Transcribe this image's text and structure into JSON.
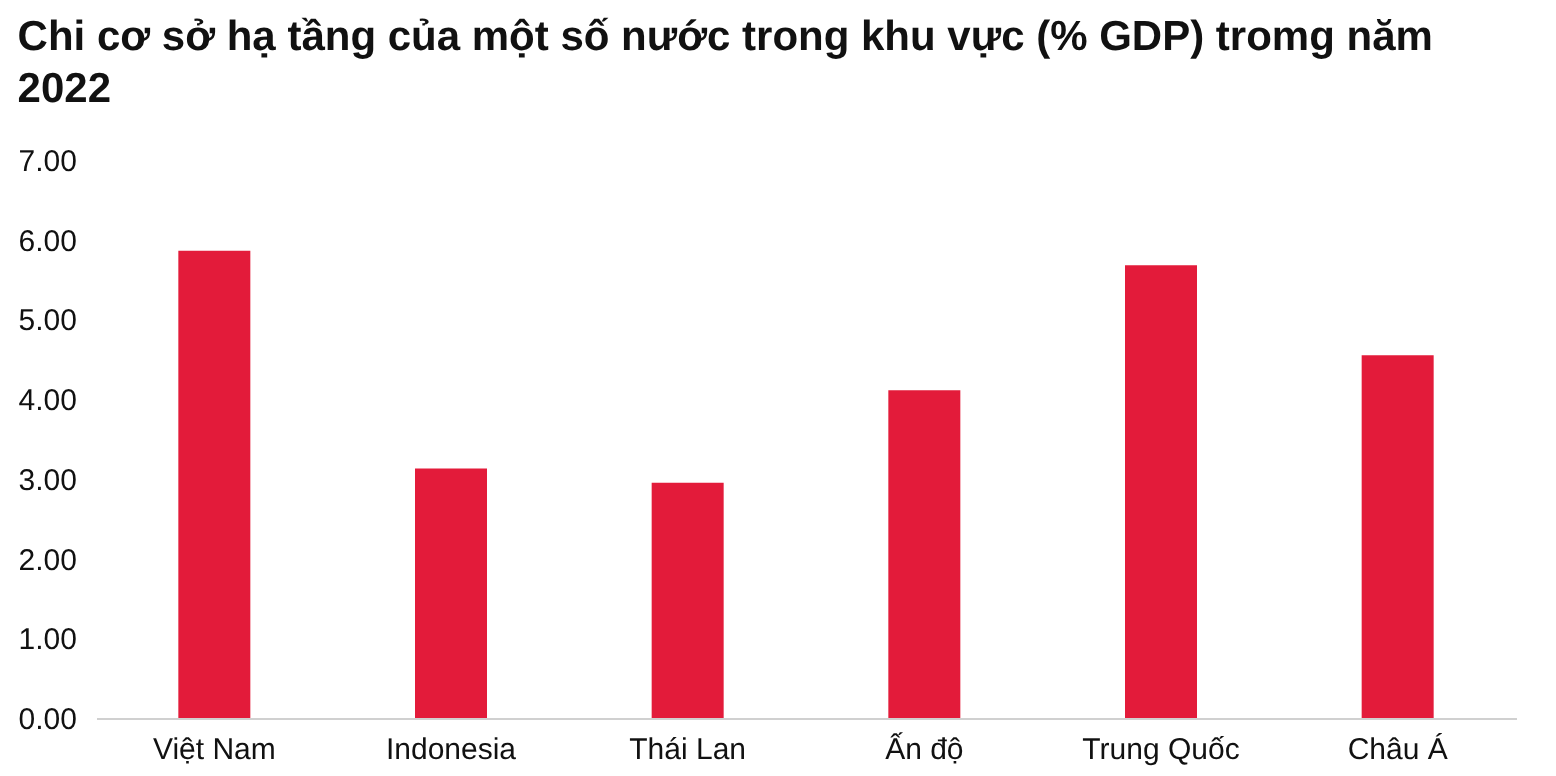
{
  "chart_data": {
    "type": "bar",
    "title": "Chi cơ sở hạ tầng của một số nước trong khu vực (% GDP) tromg năm 2022",
    "categories": [
      "Việt Nam",
      "Indonesia",
      "Thái Lan",
      "Ấn độ",
      "Trung Quốc",
      "Châu Á"
    ],
    "values": [
      5.86,
      3.13,
      2.95,
      4.11,
      5.68,
      4.55
    ],
    "color": "#e31b3a",
    "ylim": [
      0,
      7
    ],
    "yticks": [
      {
        "value": 0,
        "label": "0.00"
      },
      {
        "value": 1,
        "label": "1.00"
      },
      {
        "value": 2,
        "label": "2.00"
      },
      {
        "value": 3,
        "label": "3.00"
      },
      {
        "value": 4,
        "label": "4.00"
      },
      {
        "value": 5,
        "label": "5.00"
      },
      {
        "value": 6,
        "label": "6.00"
      },
      {
        "value": 7,
        "label": "7.00"
      }
    ],
    "grid": false
  }
}
